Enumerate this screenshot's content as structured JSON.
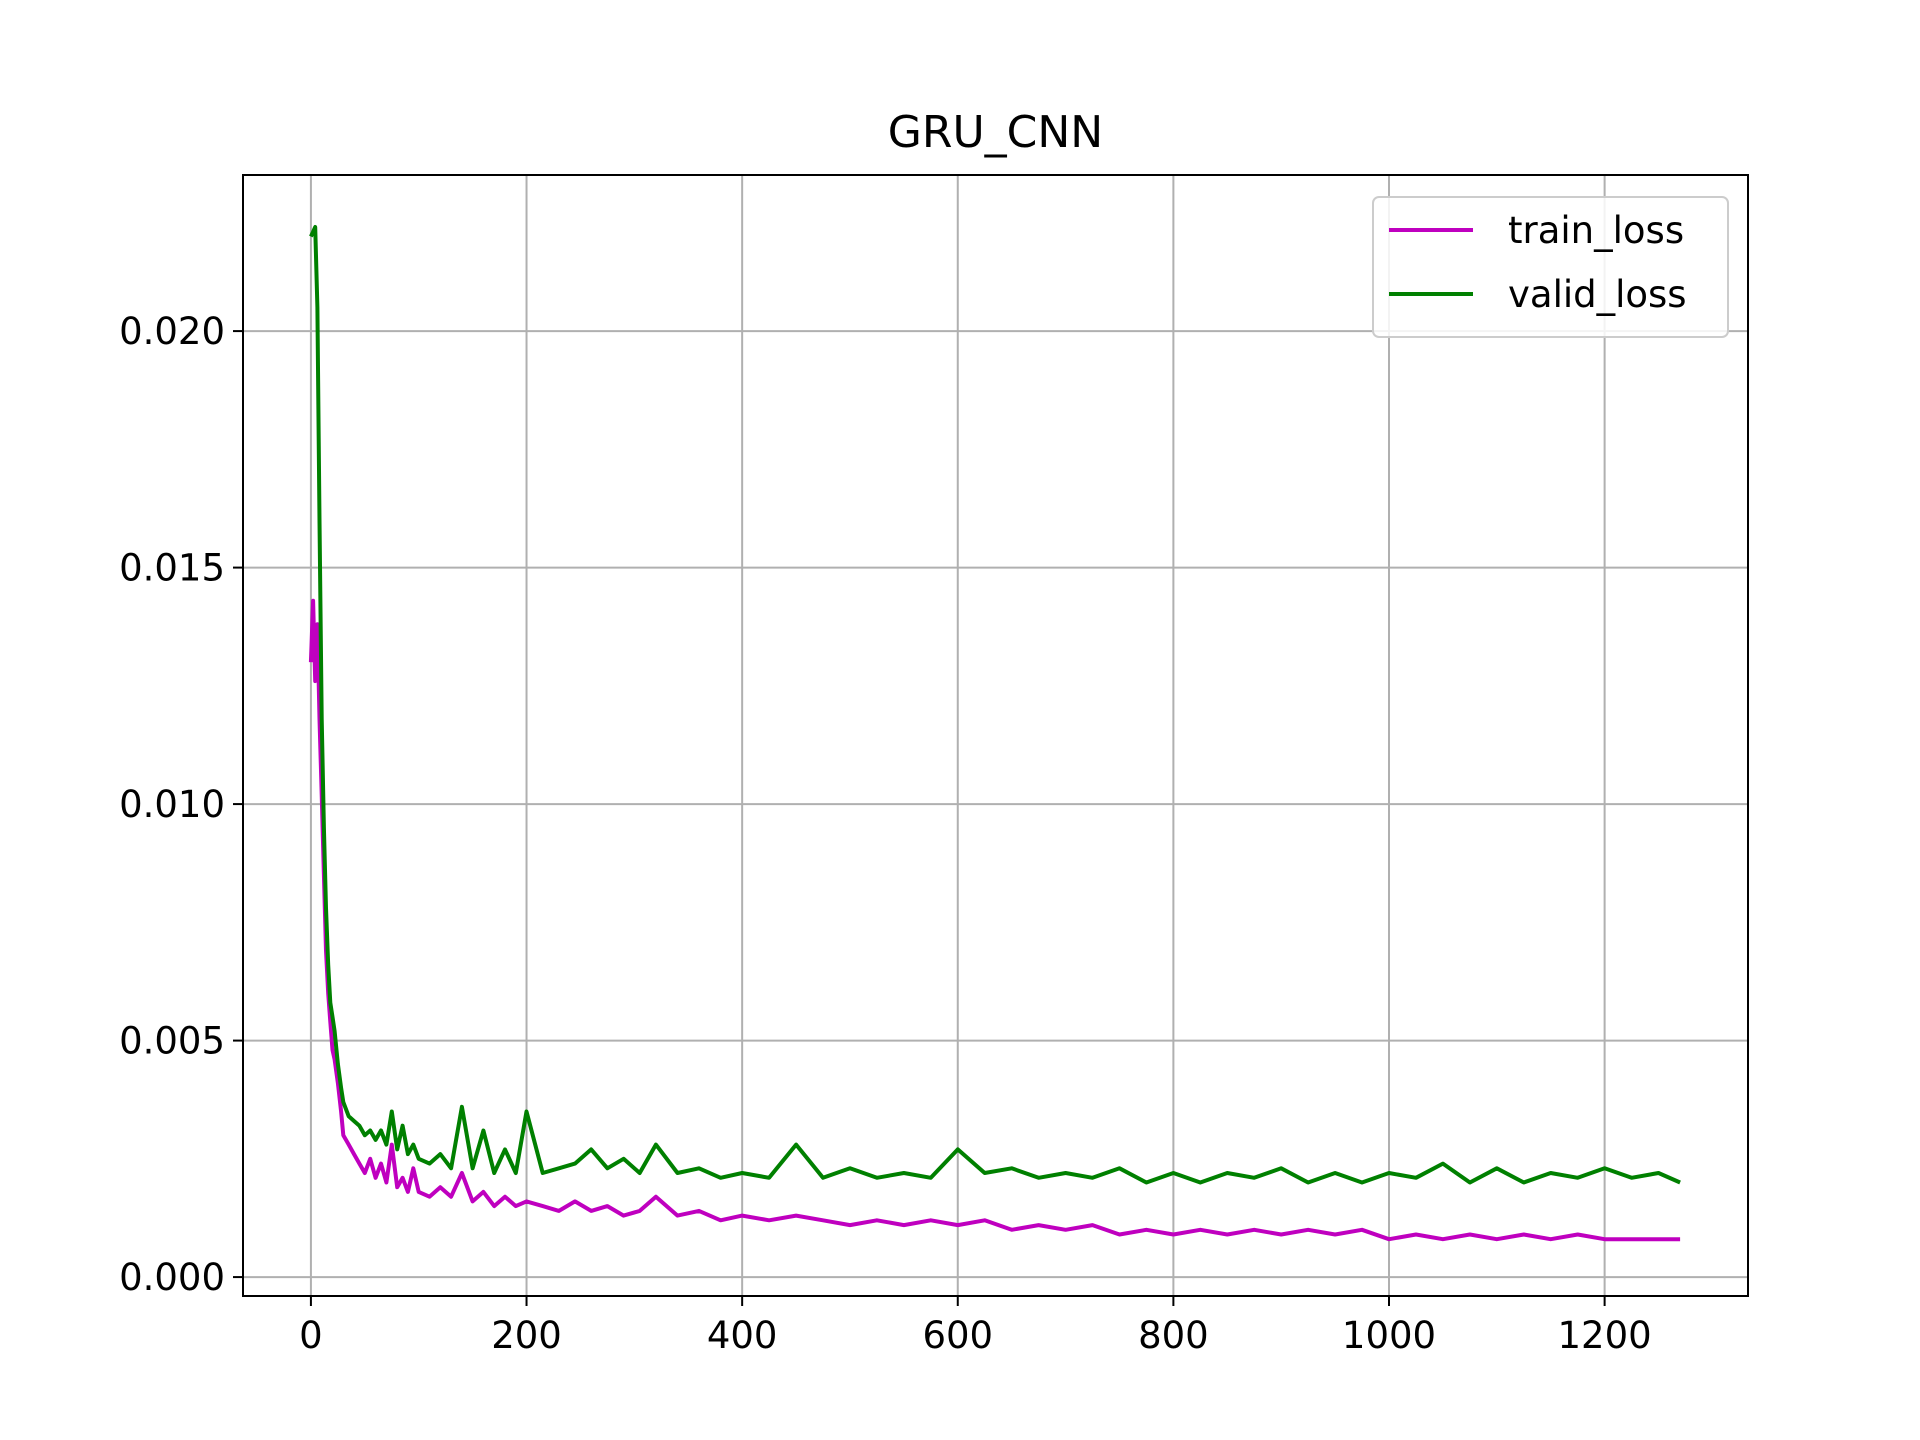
{
  "chart_data": {
    "type": "line",
    "title": "GRU_CNN",
    "xlabel": "",
    "ylabel": "",
    "xlim": [
      -63,
      1333
    ],
    "ylim": [
      -0.0004,
      0.0233
    ],
    "xticks": [
      0,
      200,
      400,
      600,
      800,
      1000,
      1200
    ],
    "xtick_labels": [
      "0",
      "200",
      "400",
      "600",
      "800",
      "1000",
      "1200"
    ],
    "yticks": [
      0.0,
      0.005,
      0.01,
      0.015,
      0.02
    ],
    "ytick_labels": [
      "0.000",
      "0.005",
      "0.010",
      "0.015",
      "0.020"
    ],
    "grid": true,
    "legend_position": "top-right",
    "series": [
      {
        "name": "train_loss",
        "color": "#bf00bf",
        "x": [
          0,
          2,
          4,
          6,
          8,
          10,
          12,
          14,
          16,
          18,
          20,
          22,
          25,
          28,
          30,
          35,
          40,
          45,
          50,
          55,
          60,
          65,
          70,
          75,
          80,
          85,
          90,
          95,
          100,
          110,
          120,
          130,
          140,
          150,
          160,
          170,
          180,
          190,
          200,
          215,
          230,
          245,
          260,
          275,
          290,
          305,
          320,
          340,
          360,
          380,
          400,
          425,
          450,
          475,
          500,
          525,
          550,
          575,
          600,
          625,
          650,
          675,
          700,
          725,
          750,
          775,
          800,
          825,
          850,
          875,
          900,
          925,
          950,
          975,
          1000,
          1025,
          1050,
          1075,
          1100,
          1125,
          1150,
          1175,
          1200,
          1225,
          1250,
          1270
        ],
        "y": [
          0.013,
          0.0143,
          0.0126,
          0.0138,
          0.0118,
          0.0102,
          0.0085,
          0.0069,
          0.006,
          0.0054,
          0.0048,
          0.0046,
          0.0041,
          0.0035,
          0.003,
          0.0028,
          0.0026,
          0.0024,
          0.0022,
          0.0025,
          0.0021,
          0.0024,
          0.002,
          0.0028,
          0.0019,
          0.0021,
          0.0018,
          0.0023,
          0.0018,
          0.0017,
          0.0019,
          0.0017,
          0.0022,
          0.0016,
          0.0018,
          0.0015,
          0.0017,
          0.0015,
          0.0016,
          0.0015,
          0.0014,
          0.0016,
          0.0014,
          0.0015,
          0.0013,
          0.0014,
          0.0017,
          0.0013,
          0.0014,
          0.0012,
          0.0013,
          0.0012,
          0.0013,
          0.0012,
          0.0011,
          0.0012,
          0.0011,
          0.0012,
          0.0011,
          0.0012,
          0.001,
          0.0011,
          0.001,
          0.0011,
          0.0009,
          0.001,
          0.0009,
          0.001,
          0.0009,
          0.001,
          0.0009,
          0.001,
          0.0009,
          0.001,
          0.0008,
          0.0009,
          0.0008,
          0.0009,
          0.0008,
          0.0009,
          0.0008,
          0.0009,
          0.0008,
          0.0008,
          0.0008,
          0.0008
        ]
      },
      {
        "name": "valid_loss",
        "color": "#008000",
        "x": [
          0,
          2,
          4,
          6,
          8,
          10,
          12,
          14,
          16,
          18,
          20,
          22,
          25,
          28,
          30,
          35,
          40,
          45,
          50,
          55,
          60,
          65,
          70,
          75,
          80,
          85,
          90,
          95,
          100,
          110,
          120,
          130,
          140,
          150,
          160,
          170,
          180,
          190,
          200,
          215,
          230,
          245,
          260,
          275,
          290,
          305,
          320,
          340,
          360,
          380,
          400,
          425,
          450,
          475,
          500,
          525,
          550,
          575,
          600,
          625,
          650,
          675,
          700,
          725,
          750,
          775,
          800,
          825,
          850,
          875,
          900,
          925,
          950,
          975,
          1000,
          1025,
          1050,
          1075,
          1100,
          1125,
          1150,
          1175,
          1200,
          1225,
          1250,
          1270
        ],
        "y": [
          0.022,
          0.0221,
          0.0222,
          0.0205,
          0.016,
          0.0118,
          0.0095,
          0.0078,
          0.0066,
          0.0058,
          0.0055,
          0.0052,
          0.0045,
          0.004,
          0.0037,
          0.0034,
          0.0033,
          0.0032,
          0.003,
          0.0031,
          0.0029,
          0.0031,
          0.0028,
          0.0035,
          0.0027,
          0.0032,
          0.0026,
          0.0028,
          0.0025,
          0.0024,
          0.0026,
          0.0023,
          0.0036,
          0.0023,
          0.0031,
          0.0022,
          0.0027,
          0.0022,
          0.0035,
          0.0022,
          0.0023,
          0.0024,
          0.0027,
          0.0023,
          0.0025,
          0.0022,
          0.0028,
          0.0022,
          0.0023,
          0.0021,
          0.0022,
          0.0021,
          0.0028,
          0.0021,
          0.0023,
          0.0021,
          0.0022,
          0.0021,
          0.0027,
          0.0022,
          0.0023,
          0.0021,
          0.0022,
          0.0021,
          0.0023,
          0.002,
          0.0022,
          0.002,
          0.0022,
          0.0021,
          0.0023,
          0.002,
          0.0022,
          0.002,
          0.0022,
          0.0021,
          0.0024,
          0.002,
          0.0023,
          0.002,
          0.0022,
          0.0021,
          0.0023,
          0.0021,
          0.0022,
          0.002
        ]
      }
    ]
  }
}
